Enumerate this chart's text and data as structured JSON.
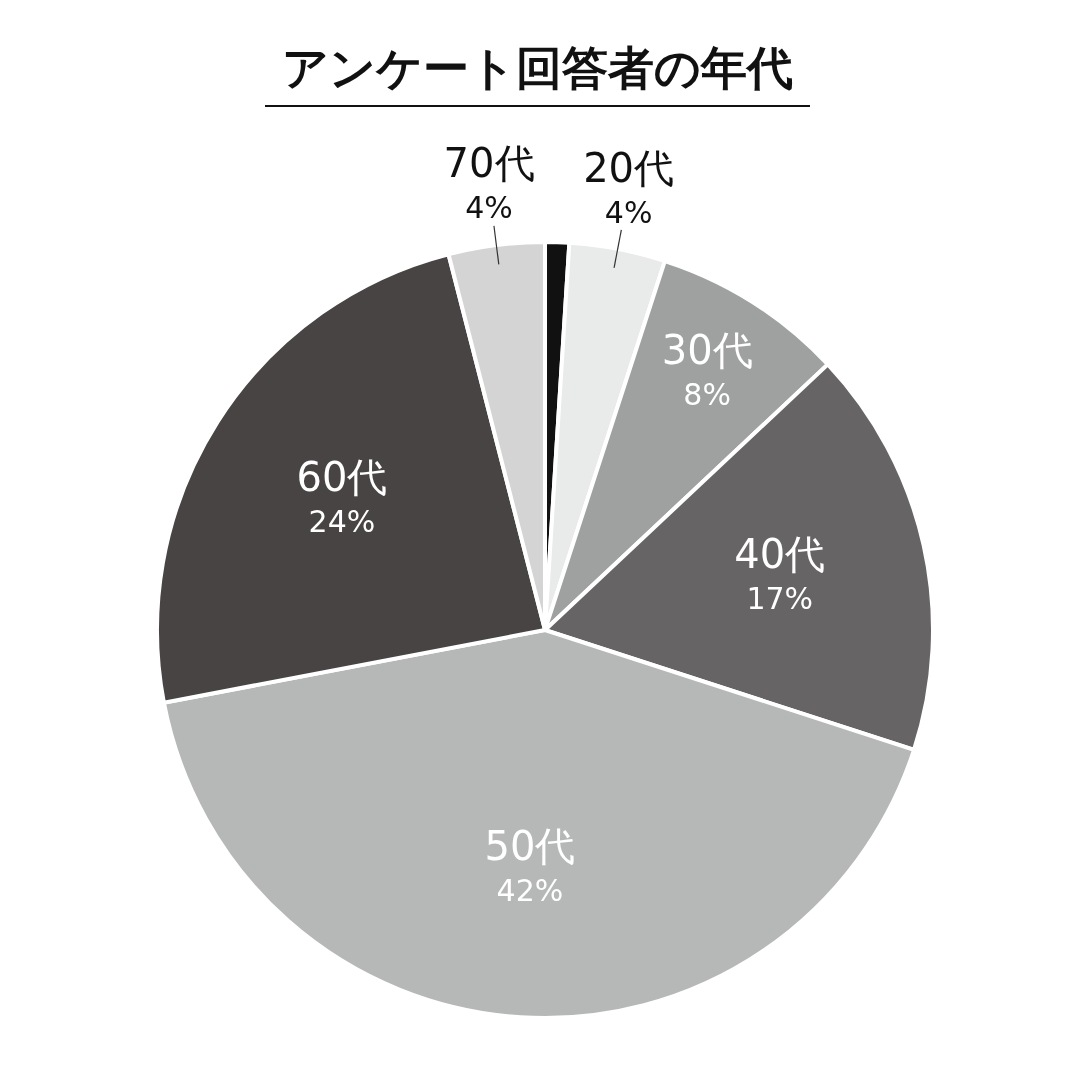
{
  "chart_data": {
    "type": "pie",
    "title": "アンケート回答者の年代",
    "categories": [
      null,
      "20代",
      "30代",
      "40代",
      "50代",
      "60代",
      "70代"
    ],
    "values": [
      1,
      4,
      8,
      17,
      42,
      24,
      4
    ],
    "value_labels": [
      null,
      "4%",
      "8%",
      "17%",
      "42%",
      "24%",
      "4%"
    ],
    "colors": [
      "#111111",
      "#e9eaea",
      "#9fa0a0",
      "#666464",
      "#b6b7b7",
      "#484443",
      "#d4d4d5"
    ]
  }
}
